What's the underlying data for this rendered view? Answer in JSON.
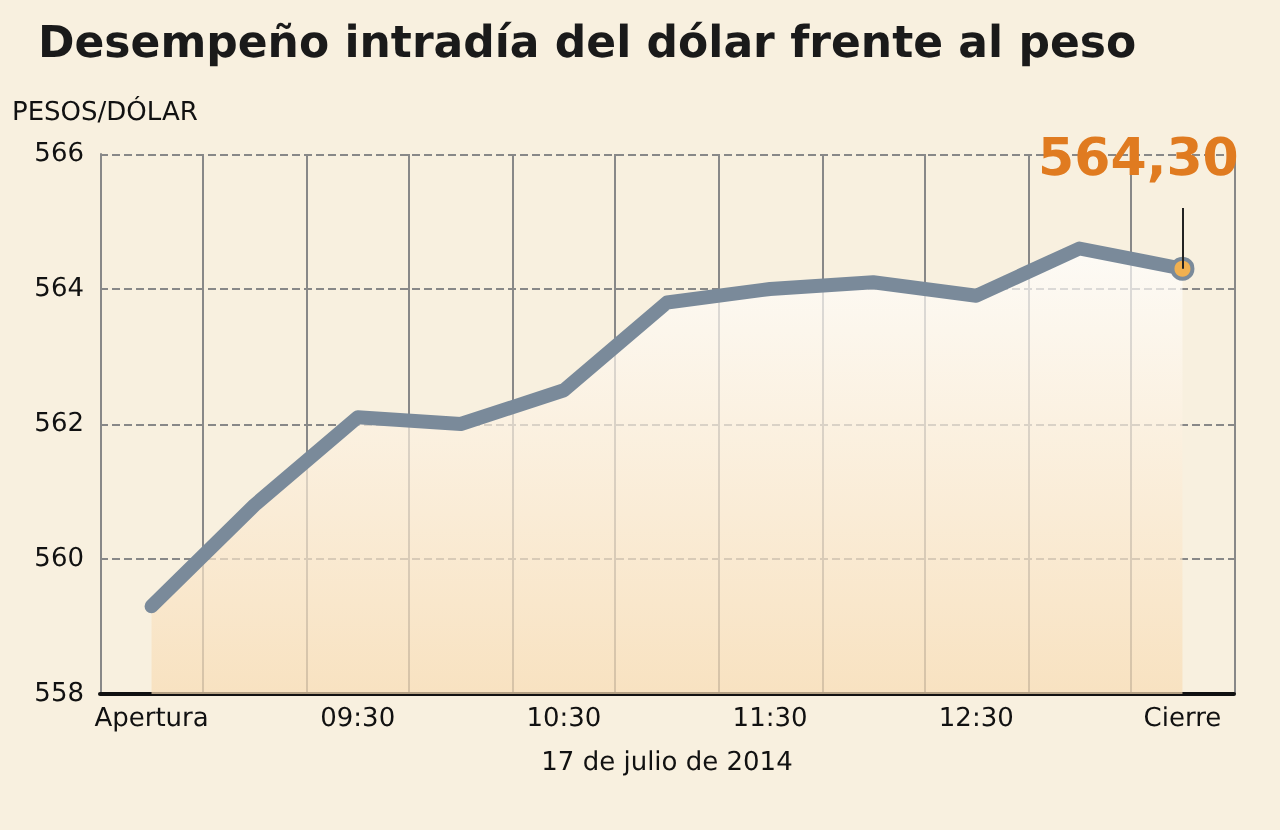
{
  "chart_data": {
    "type": "area",
    "title": "Desempeño intradía del dólar frente al peso",
    "ylabel": "PESOS/DÓLAR",
    "xlabel": "17 de julio de 2014",
    "categories": [
      "Apertura",
      null,
      "09:30",
      null,
      "10:30",
      null,
      "11:30",
      null,
      "12:30",
      null,
      "Cierre"
    ],
    "series": [
      {
        "color": "#7a8a9a",
        "values": [
          559.3,
          560.8,
          562.1,
          562.0,
          562.5,
          563.8,
          564.0,
          564.1,
          563.9,
          564.6,
          564.3
        ],
        "value_labels": [
          null,
          null,
          null,
          null,
          null,
          null,
          null,
          null,
          null,
          null,
          "564,30"
        ]
      }
    ],
    "ylim": [
      558,
      566
    ],
    "yticks": [
      558,
      560,
      562,
      564,
      566
    ],
    "grid": true
  }
}
